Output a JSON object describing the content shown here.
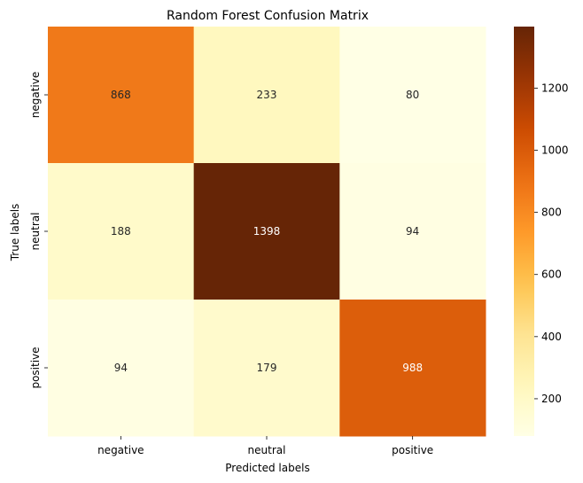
{
  "chart_data": {
    "type": "heatmap",
    "title": "Random Forest Confusion Matrix",
    "xlabel": "Predicted labels",
    "ylabel": "True labels",
    "x_categories": [
      "negative",
      "neutral",
      "positive"
    ],
    "y_categories": [
      "negative",
      "neutral",
      "positive"
    ],
    "values": [
      [
        868,
        233,
        80
      ],
      [
        188,
        1398,
        94
      ],
      [
        94,
        179,
        988
      ]
    ],
    "colormap": "YlOrBr",
    "colorbar": {
      "range": [
        80,
        1398
      ],
      "ticks": [
        200,
        400,
        600,
        800,
        1000,
        1200
      ]
    },
    "annot_dark_color": "#262626",
    "annot_light_color": "#ffffff"
  }
}
